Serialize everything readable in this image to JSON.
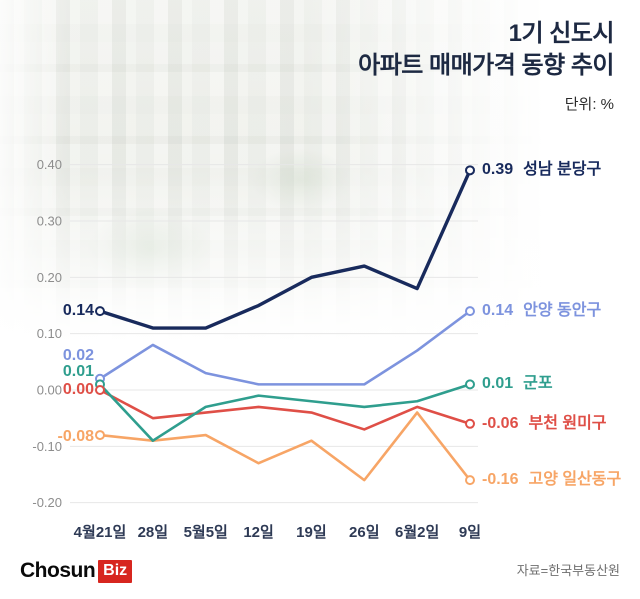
{
  "header": {
    "title_line1": "1기 신도시",
    "title_line2": "아파트 매매가격 동향 추이",
    "unit": "단위: %"
  },
  "footer": {
    "logo_chosun": "Chosun",
    "logo_biz": "Biz",
    "source": "자료=한국부동산원"
  },
  "chart_data": {
    "type": "line",
    "title": "1기 신도시 아파트 매매가격 동향 추이",
    "unit": "%",
    "grid": true,
    "legend_position": "right-of-line-ends",
    "x_labels": [
      "4월21일",
      "28일",
      "5월5일",
      "12일",
      "19일",
      "26일",
      "6월2일",
      "9일"
    ],
    "y_ticks": [
      {
        "value": 0.4,
        "label": "0.40"
      },
      {
        "value": 0.3,
        "label": "0.30"
      },
      {
        "value": 0.2,
        "label": "0.20"
      },
      {
        "value": 0.1,
        "label": "0.10"
      },
      {
        "value": 0.0,
        "label": "0.00"
      },
      {
        "value": -0.1,
        "label": "-0.10"
      },
      {
        "value": -0.2,
        "label": "-0.20"
      }
    ],
    "ylim": [
      -0.22,
      0.42
    ],
    "series": [
      {
        "name": "성남 분당구",
        "color": "#182a5c",
        "values": [
          0.14,
          0.11,
          0.11,
          0.15,
          0.2,
          0.22,
          0.18,
          0.39
        ],
        "start_label": "0.14",
        "end_label": "0.39"
      },
      {
        "name": "안양 동안구",
        "color": "#7d93de",
        "values": [
          0.02,
          0.08,
          0.03,
          0.01,
          0.01,
          0.01,
          0.07,
          0.14
        ],
        "start_label": "0.02",
        "end_label": "0.14"
      },
      {
        "name": "군포",
        "color": "#2f9e8e",
        "values": [
          0.01,
          -0.09,
          -0.03,
          -0.01,
          -0.02,
          -0.03,
          -0.02,
          0.01
        ],
        "start_label": "0.01",
        "end_label": "0.01"
      },
      {
        "name": "부천 원미구",
        "color": "#df4f47",
        "values": [
          0.0,
          -0.05,
          -0.04,
          -0.03,
          -0.04,
          -0.07,
          -0.03,
          -0.06
        ],
        "start_label": "0.00",
        "end_label": "-0.06"
      },
      {
        "name": "고양 일산동구",
        "color": "#f7a566",
        "values": [
          -0.08,
          -0.09,
          -0.08,
          -0.13,
          -0.09,
          -0.16,
          -0.04,
          -0.16
        ],
        "start_label": "-0.08",
        "end_label": "-0.16"
      }
    ]
  }
}
